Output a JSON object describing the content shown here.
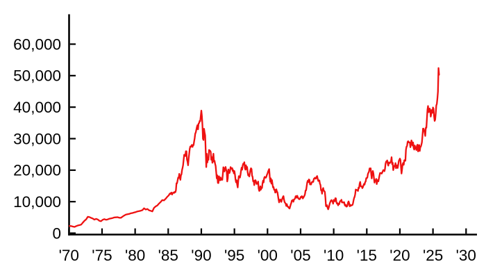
{
  "figure": {
    "kind": "line-chart",
    "background": "#ffffff"
  },
  "chart_data": {
    "type": "line",
    "title": "",
    "xlabel": "",
    "ylabel": "",
    "grid": false,
    "legend": "none",
    "xlim": [
      1970,
      2031.7
    ],
    "ylim": [
      0,
      69500
    ],
    "x_axis": {
      "tick_years": [
        1970,
        1975,
        1980,
        1985,
        1990,
        1995,
        2000,
        2005,
        2010,
        2015,
        2020,
        2025,
        2030
      ],
      "tick_labels": [
        "'70",
        "'75",
        "'80",
        "'85",
        "'90",
        "'95",
        "'00",
        "'05",
        "'10",
        "'15",
        "'20",
        "'25",
        "'30"
      ]
    },
    "y_axis": {
      "tick_values": [
        0,
        10000,
        20000,
        30000,
        40000,
        50000,
        60000
      ],
      "tick_labels": [
        "0",
        "10,000",
        "20,000",
        "30,000",
        "40,000",
        "50,000",
        "60,000"
      ]
    },
    "style": {
      "line_color": "#ee1111",
      "line_width": 2.3,
      "axis_color": "#000000",
      "text_color": "#000000",
      "font_size": 22.5
    },
    "series": [
      {
        "cadence": "quarterly",
        "start": 1970.1,
        "step": 0.25,
        "values": [
          2300,
          2250,
          2100,
          1990,
          2250,
          2450,
          2550,
          2710,
          3350,
          3950,
          4400,
          5210,
          5100,
          4850,
          4650,
          4310,
          4550,
          4350,
          3900,
          3820,
          4250,
          4450,
          4250,
          4360,
          4580,
          4700,
          4800,
          4990,
          5020,
          5080,
          4900,
          4870,
          5250,
          5600,
          5900,
          6000,
          6100,
          6300,
          6400,
          6570,
          6700,
          6900,
          7000,
          7120,
          7300,
          7900,
          7500,
          7680,
          7260,
          7100,
          6900,
          8020,
          8500,
          8800,
          9400,
          9890,
          10500,
          10400,
          10900,
          11540
        ]
      },
      {
        "cadence": "monthly",
        "start": 1985.083,
        "step": 0.083333,
        "values": [
          11990,
          12320,
          12590,
          12430,
          12790,
          12880,
          12260,
          12720,
          12740,
          12940,
          12790,
          13110,
          13020,
          13640,
          15860,
          15830,
          16740,
          17650,
          17510,
          18820,
          17850,
          16910,
          18320,
          18700,
          20020,
          20770,
          21570,
          23270,
          24900,
          24900,
          24490,
          25990,
          26010,
          23330,
          22690,
          21560,
          23620,
          25240,
          26780,
          27510,
          27420,
          27770,
          28030,
          27370,
          27920,
          27940,
          29090,
          30160,
          31580,
          31990,
          32840,
          33710,
          34270,
          32950,
          34800,
          34950,
          35640,
          35550,
          37270,
          38920,
          37190,
          34180,
          29980,
          29580,
          33130,
          31940,
          31040,
          25980,
          20980,
          25190,
          22450,
          23850,
          23290,
          26410,
          26290,
          26110,
          25790,
          23290,
          24120,
          22340,
          23910,
          25220,
          22690,
          22980,
          22020,
          21340,
          19350,
          17390,
          18350,
          15950,
          15910,
          18060,
          17400,
          16770,
          17680,
          16920,
          17020,
          16950,
          18590,
          20920,
          20550,
          19590,
          20380,
          21030,
          20100,
          19700,
          16410,
          17420,
          20230,
          19660,
          19110,
          19730,
          20970,
          20640,
          20450,
          20630,
          19750,
          19990,
          19000,
          19720,
          18650,
          17050,
          16140,
          16810,
          15440,
          14520,
          16680,
          18120,
          17910,
          17650,
          18560,
          19870,
          20810,
          20130,
          21410,
          22040,
          21880,
          22530,
          20690,
          20170,
          21560,
          20330,
          21020,
          19360,
          18330,
          18560,
          18000,
          19150,
          20070,
          20600,
          20330,
          18230,
          17890,
          16460,
          16640,
          15260,
          16630,
          16830,
          16530,
          15640,
          15670,
          15830,
          16380,
          14110,
          13410,
          13560,
          14880,
          13840,
          14500,
          14370,
          15840,
          16700,
          16110,
          17530,
          17860,
          17630,
          17610,
          17940,
          18560,
          18930,
          19540,
          19960,
          20340,
          17970,
          16330,
          17410,
          15730,
          16860,
          15750,
          14540,
          14650,
          13790,
          13840,
          12880,
          13000,
          13930,
          13260,
          12970,
          11860,
          10710,
          9770,
          10370,
          10700,
          10540,
          9920,
          10590,
          11020,
          11490,
          11760,
          10620,
          9880,
          9620,
          9380,
          8640,
          9220,
          8580,
          8340,
          8360,
          7970,
          7830,
          8420,
          9080,
          9560,
          10340,
          10220,
          10560,
          9960,
          10680,
          10780,
          11040,
          11720,
          11760,
          11240,
          11860,
          11330,
          11080,
          10820,
          10770,
          10900,
          11490,
          11390,
          11740,
          11670,
          11010,
          11280,
          11580,
          11900,
          12410,
          13570,
          13610,
          14870,
          16110,
          16650,
          16210,
          17060,
          16910,
          15470,
          15510,
          15460,
          16140,
          16130,
          16400,
          16270,
          17230,
          17380,
          17600,
          17290,
          17400,
          17880,
          18140,
          17250,
          16570,
          16790,
          16740,
          15680,
          15310,
          13590,
          13600,
          12530,
          13850,
          14340,
          13480,
          13380,
          13070,
          11260,
          8580,
          8510,
          8860,
          7990,
          7570,
          8110,
          8830,
          9520,
          9960,
          10360,
          10490,
          10130,
          10030,
          9350,
          10550,
          10200,
          10130,
          11090,
          11060,
          9770,
          9380,
          9540,
          8820,
          9370,
          9200,
          9940,
          10230,
          10240,
          10620,
          9760,
          9850,
          9690,
          9820,
          9830,
          8960,
          8700,
          8990,
          8430,
          8460,
          8800,
          9720,
          10080,
          9520,
          8540,
          9010,
          8700,
          8840,
          8870,
          8930,
          9450,
          10400,
          11140,
          11560,
          12400,
          13860,
          13770,
          13680,
          13670,
          13390,
          14460,
          14330,
          15660,
          16290,
          14910,
          14840,
          14830,
          14300,
          14630,
          15160,
          15620,
          15420,
          16170,
          16410,
          17460,
          17450,
          17670,
          18800,
          19210,
          19520,
          20560,
          20240,
          20590,
          18890,
          17390,
          19080,
          19750,
          19030,
          17520,
          16030,
          16760,
          16670,
          17230,
          15580,
          16570,
          16890,
          16450,
          17430,
          18310,
          19110,
          19040,
          19120,
          18910,
          19200,
          19650,
          20030,
          19930,
          19650,
          20360,
          22010,
          22720,
          22760,
          23100,
          22070,
          21450,
          22470,
          22200,
          22300,
          22550,
          22870,
          24120,
          21920,
          22350,
          20010,
          20770,
          21390,
          21210,
          22260,
          20600,
          21280,
          21520,
          20700,
          21760,
          22930,
          23290,
          23660,
          23200,
          21140,
          18920,
          20190,
          21880,
          22290,
          21710,
          23140,
          23190,
          22980,
          26430,
          27440,
          27660,
          28970,
          29180,
          28810,
          28860,
          28790,
          27280,
          28090,
          29450,
          28890,
          27820,
          28790,
          27000,
          26530,
          27820,
          26850,
          27280,
          26390,
          27800,
          28090,
          25940,
          27590,
          27970,
          26090,
          27330,
          27450,
          28040,
          28860,
          30890,
          33190,
          33170,
          32620,
          31860,
          30860,
          33490,
          33460,
          36290,
          39170,
          40370,
          38410,
          38490,
          39580,
          39100,
          37000,
          37900,
          39080,
          38210,
          39890,
          39570,
          37160,
          35620,
          36050,
          37970,
          40490,
          41070,
          42720,
          44930,
          52410,
          50280
        ]
      }
    ]
  }
}
